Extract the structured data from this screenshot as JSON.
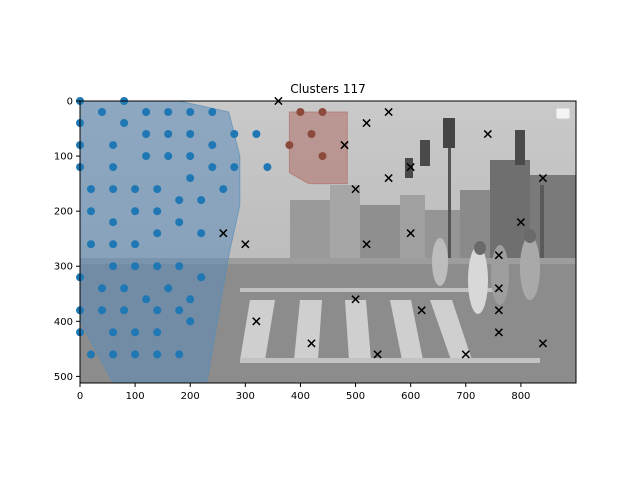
{
  "chart_data": {
    "type": "scatter",
    "title": "Clusters 117",
    "xlabel": "",
    "ylabel": "",
    "xlim": [
      0,
      900
    ],
    "ylim": [
      512,
      0
    ],
    "xticks": [
      0,
      100,
      200,
      300,
      400,
      500,
      600,
      700,
      800
    ],
    "yticks": [
      0,
      100,
      200,
      300,
      400,
      500
    ],
    "grid": false,
    "legend": "top-right",
    "background": "grayscale street crosswalk photograph",
    "clusters": [
      {
        "color": "#1f77b4",
        "hull_color": "#5b8db8",
        "marker": "circle",
        "hull": [
          [
            0,
            0
          ],
          [
            180,
            0
          ],
          [
            270,
            20
          ],
          [
            290,
            100
          ],
          [
            290,
            190
          ],
          [
            270,
            280
          ],
          [
            230,
            512
          ],
          [
            60,
            512
          ],
          [
            0,
            400
          ],
          [
            0,
            0
          ]
        ],
        "points": [
          [
            0,
            0
          ],
          [
            80,
            0
          ],
          [
            40,
            20
          ],
          [
            120,
            20
          ],
          [
            160,
            20
          ],
          [
            200,
            20
          ],
          [
            240,
            20
          ],
          [
            0,
            40
          ],
          [
            80,
            40
          ],
          [
            120,
            60
          ],
          [
            160,
            60
          ],
          [
            200,
            60
          ],
          [
            280,
            60
          ],
          [
            320,
            60
          ],
          [
            0,
            80
          ],
          [
            60,
            80
          ],
          [
            240,
            80
          ],
          [
            0,
            120
          ],
          [
            60,
            120
          ],
          [
            120,
            100
          ],
          [
            160,
            100
          ],
          [
            200,
            100
          ],
          [
            240,
            120
          ],
          [
            280,
            120
          ],
          [
            340,
            120
          ],
          [
            20,
            160
          ],
          [
            60,
            160
          ],
          [
            100,
            160
          ],
          [
            140,
            160
          ],
          [
            200,
            140
          ],
          [
            260,
            160
          ],
          [
            20,
            200
          ],
          [
            60,
            220
          ],
          [
            100,
            200
          ],
          [
            140,
            200
          ],
          [
            180,
            180
          ],
          [
            220,
            180
          ],
          [
            20,
            260
          ],
          [
            60,
            260
          ],
          [
            100,
            260
          ],
          [
            140,
            240
          ],
          [
            180,
            220
          ],
          [
            220,
            240
          ],
          [
            0,
            320
          ],
          [
            60,
            300
          ],
          [
            100,
            300
          ],
          [
            140,
            300
          ],
          [
            180,
            300
          ],
          [
            220,
            320
          ],
          [
            40,
            340
          ],
          [
            80,
            340
          ],
          [
            120,
            360
          ],
          [
            160,
            340
          ],
          [
            200,
            360
          ],
          [
            0,
            380
          ],
          [
            40,
            380
          ],
          [
            80,
            380
          ],
          [
            140,
            380
          ],
          [
            180,
            380
          ],
          [
            0,
            420
          ],
          [
            60,
            420
          ],
          [
            100,
            420
          ],
          [
            140,
            420
          ],
          [
            200,
            400
          ],
          [
            20,
            460
          ],
          [
            60,
            460
          ],
          [
            100,
            460
          ],
          [
            140,
            460
          ],
          [
            180,
            460
          ]
        ]
      },
      {
        "color": "#8c4a3c",
        "hull_color": "#b07068",
        "marker": "circle",
        "hull": [
          [
            380,
            20
          ],
          [
            485,
            20
          ],
          [
            485,
            150
          ],
          [
            415,
            150
          ],
          [
            380,
            130
          ],
          [
            380,
            20
          ]
        ],
        "points": [
          [
            400,
            20
          ],
          [
            440,
            20
          ],
          [
            420,
            60
          ],
          [
            380,
            80
          ],
          [
            440,
            100
          ]
        ]
      }
    ],
    "noise": {
      "color": "#000000",
      "marker": "x",
      "points": [
        [
          360,
          0
        ],
        [
          560,
          20
        ],
        [
          520,
          40
        ],
        [
          740,
          60
        ],
        [
          480,
          80
        ],
        [
          600,
          120
        ],
        [
          560,
          140
        ],
        [
          840,
          140
        ],
        [
          500,
          160
        ],
        [
          800,
          220
        ],
        [
          260,
          240
        ],
        [
          600,
          240
        ],
        [
          300,
          260
        ],
        [
          520,
          260
        ],
        [
          760,
          280
        ],
        [
          760,
          340
        ],
        [
          500,
          360
        ],
        [
          620,
          380
        ],
        [
          760,
          380
        ],
        [
          320,
          400
        ],
        [
          760,
          420
        ],
        [
          420,
          440
        ],
        [
          840,
          440
        ],
        [
          540,
          460
        ],
        [
          700,
          460
        ]
      ]
    }
  }
}
